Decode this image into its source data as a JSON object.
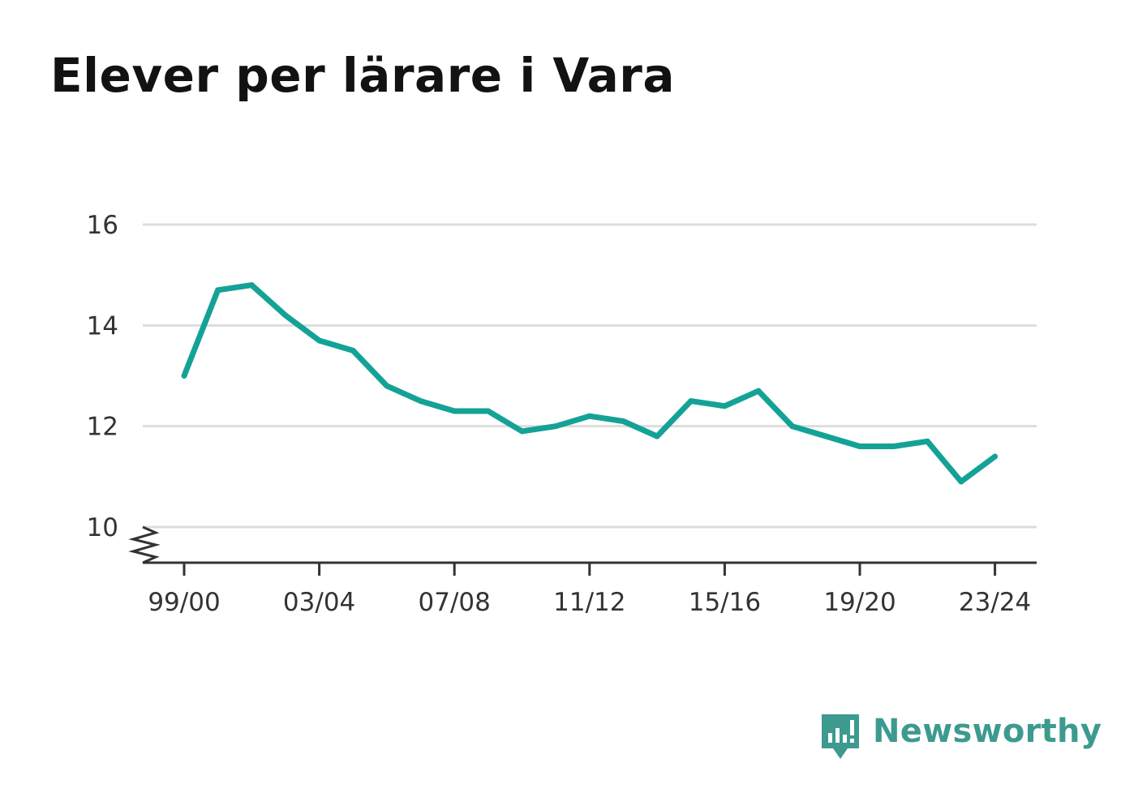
{
  "title": "Elever per lärare i Vara",
  "brand": {
    "name": "Newsworthy",
    "icon": "newsworthy-logo-icon",
    "color": "#3d9a8f"
  },
  "chart_data": {
    "type": "line",
    "title": "Elever per lärare i Vara",
    "xlabel": "",
    "ylabel": "",
    "x": [
      "99/00",
      "00/01",
      "01/02",
      "02/03",
      "03/04",
      "04/05",
      "05/06",
      "06/07",
      "07/08",
      "08/09",
      "09/10",
      "10/11",
      "11/12",
      "12/13",
      "13/14",
      "14/15",
      "15/16",
      "16/17",
      "17/18",
      "18/19",
      "19/20",
      "20/21",
      "21/22",
      "22/23",
      "23/24"
    ],
    "x_tick_labels": [
      "99/00",
      "03/04",
      "07/08",
      "11/12",
      "15/16",
      "19/20",
      "23/24"
    ],
    "y_tick_labels": [
      "10",
      "12",
      "14",
      "16"
    ],
    "y_ticks": [
      10,
      12,
      14,
      16
    ],
    "ylim": [
      10,
      16
    ],
    "y_axis_break": true,
    "grid": true,
    "legend": "none",
    "series": [
      {
        "color": "#14a297",
        "values": [
          13.0,
          14.7,
          14.8,
          14.2,
          13.7,
          13.5,
          12.8,
          12.5,
          12.3,
          12.3,
          11.9,
          12.0,
          12.2,
          12.1,
          11.8,
          12.5,
          12.4,
          12.7,
          12.0,
          11.8,
          11.6,
          11.6,
          11.7,
          10.9,
          11.4
        ]
      }
    ]
  }
}
